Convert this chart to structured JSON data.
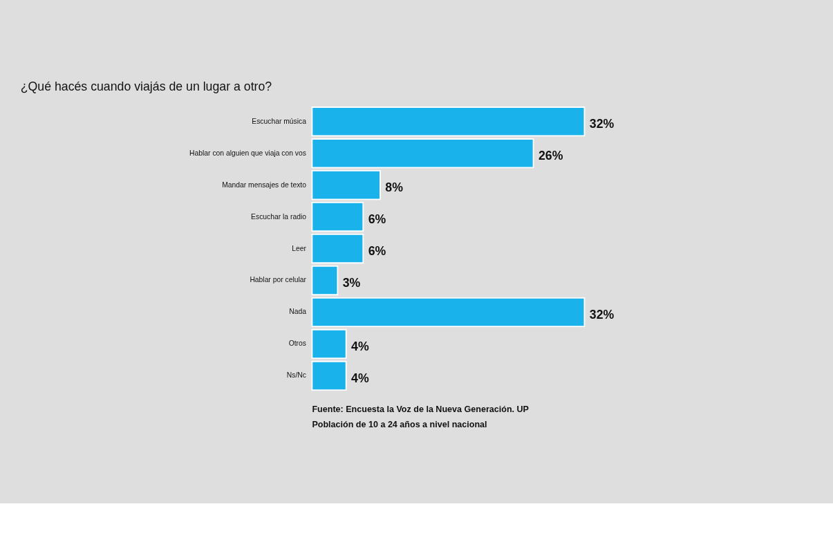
{
  "chart_data": {
    "type": "bar",
    "orientation": "horizontal",
    "title": "¿Qué hacés cuando viajás de un lugar a otro?",
    "categories": [
      "Escuchar música",
      "Hablar con alguien que viaja con vos",
      "Mandar mensajes de texto",
      "Escuchar la radio",
      "Leer",
      "Hablar por celular",
      "Nada",
      "Otros",
      "Ns/Nc"
    ],
    "values": [
      32,
      26,
      8,
      6,
      6,
      3,
      32,
      4,
      4
    ],
    "value_labels": [
      "32%",
      "26%",
      "8%",
      "6%",
      "6%",
      "3%",
      "32%",
      "4%",
      "4%"
    ],
    "color": "#1ab2ea",
    "annotations": [
      "Fuente: Encuesta la Voz de la Nueva Generación. UP",
      "Población de 10 a 24 años a nivel nacional"
    ]
  }
}
